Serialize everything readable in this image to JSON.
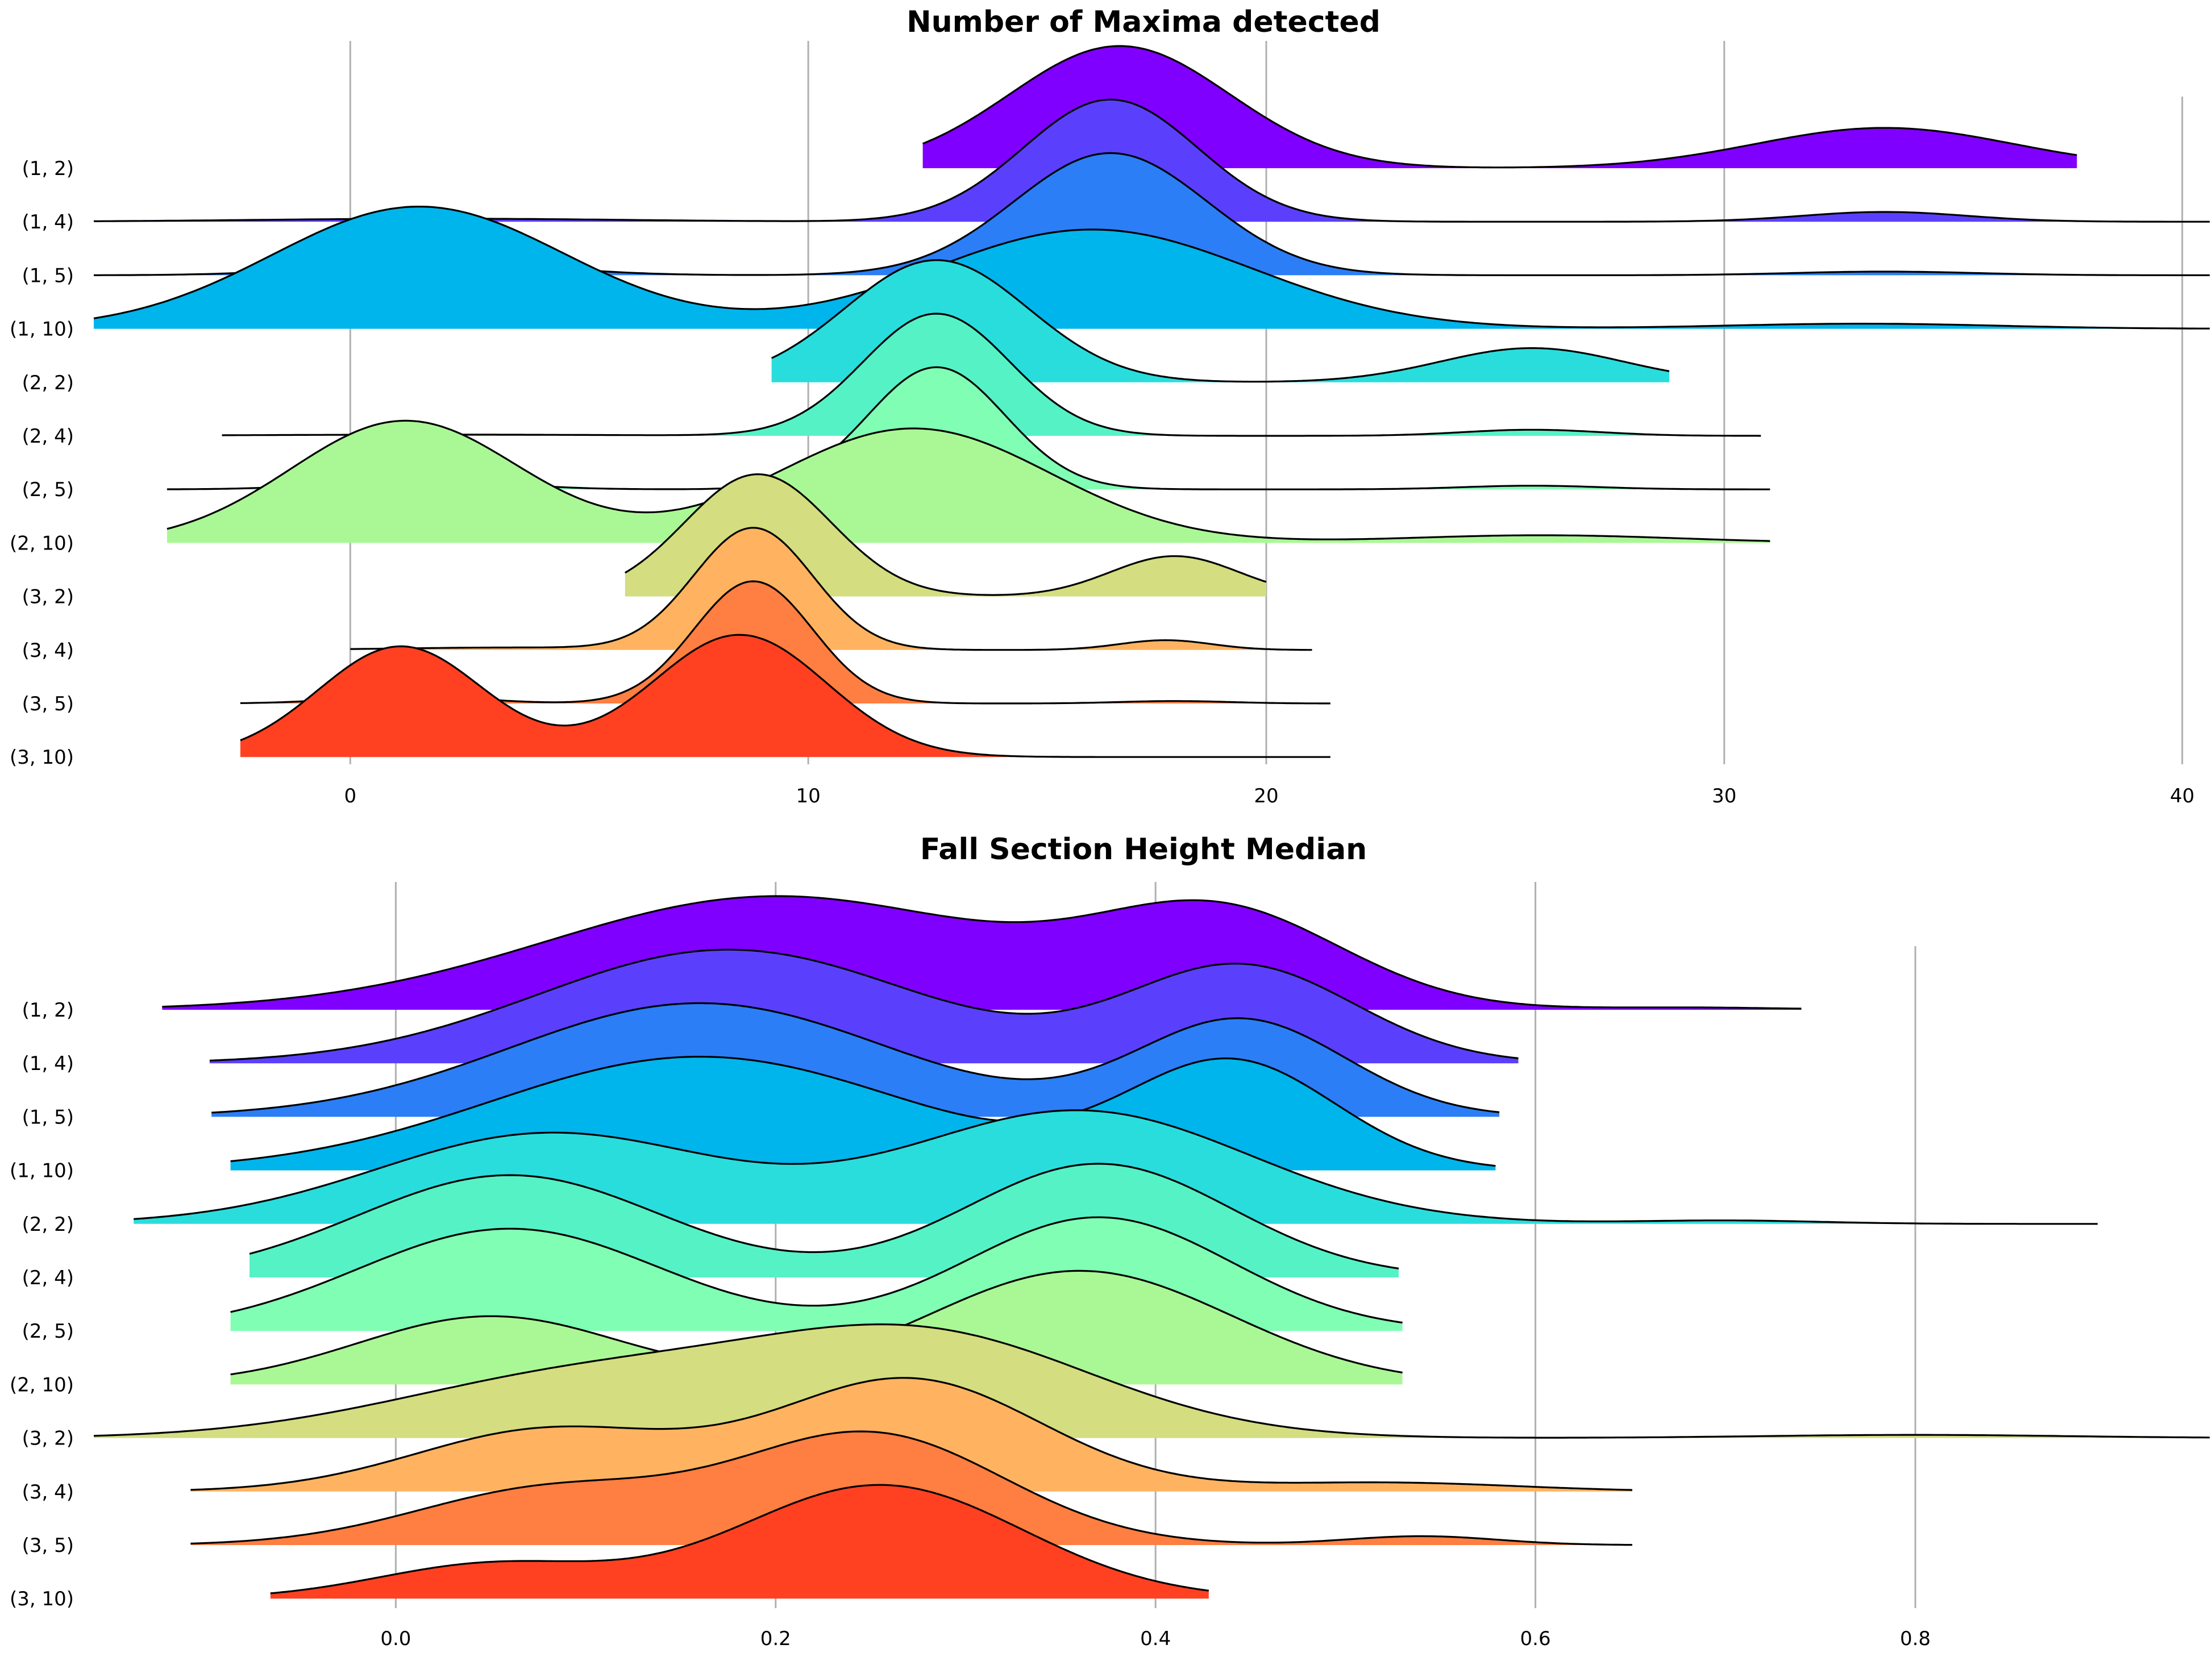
{
  "chart_data": [
    {
      "type": "ridgeline",
      "title": "Number of Maxima detected",
      "xlabel": "",
      "ylabel": "",
      "xlim": [
        -5.6,
        40.6
      ],
      "xticks": [
        0,
        10,
        20,
        30,
        40
      ],
      "xtick_labels": [
        "0",
        "10",
        "20",
        "30",
        "40"
      ],
      "grid": "vertical",
      "series": [
        {
          "name": "(1, 2)",
          "color": "#8000ff",
          "range": [
            12.5,
            37.7
          ],
          "components": [
            [
              16.8,
              2.4,
              1.0
            ],
            [
              33.5,
              2.8,
              0.33
            ]
          ]
        },
        {
          "name": "(1, 4)",
          "color": "#5a40fc",
          "range": [
            -5.6,
            40.6
          ],
          "components": [
            [
              16.6,
              1.9,
              1.0
            ],
            [
              33.5,
              1.8,
              0.08
            ],
            [
              2.0,
              4.0,
              0.025
            ]
          ]
        },
        {
          "name": "(1, 5)",
          "color": "#2b7ef6",
          "range": [
            -5.6,
            40.6
          ],
          "components": [
            [
              16.6,
              2.1,
              1.0
            ],
            [
              1.9,
              2.3,
              0.11
            ],
            [
              33.5,
              2.0,
              0.03
            ]
          ]
        },
        {
          "name": "(1, 10)",
          "color": "#00b5eb",
          "range": [
            -5.6,
            40.6
          ],
          "components": [
            [
              1.5,
              3.2,
              0.48
            ],
            [
              16.2,
              3.5,
              0.39
            ],
            [
              33.0,
              3.0,
              0.02
            ]
          ]
        },
        {
          "name": "(2, 2)",
          "color": "#2adddd",
          "range": [
            9.2,
            28.8
          ],
          "components": [
            [
              12.8,
              2.0,
              1.0
            ],
            [
              25.8,
              2.0,
              0.28
            ]
          ]
        },
        {
          "name": "(2, 4)",
          "color": "#55f2c6",
          "range": [
            -2.8,
            30.8
          ],
          "components": [
            [
              12.8,
              1.6,
              1.0
            ],
            [
              25.8,
              1.5,
              0.05
            ],
            [
              2.0,
              4.0,
              0.01
            ]
          ]
        },
        {
          "name": "(2, 5)",
          "color": "#80ffb4",
          "range": [
            -4.0,
            31.0
          ],
          "components": [
            [
              12.8,
              1.5,
              1.0
            ],
            [
              1.5,
              1.8,
              0.08
            ],
            [
              25.8,
              1.5,
              0.03
            ]
          ]
        },
        {
          "name": "(2, 10)",
          "color": "#aaf895",
          "range": [
            -4.0,
            31.0
          ],
          "components": [
            [
              1.2,
              2.5,
              0.48
            ],
            [
              12.3,
              3.0,
              0.45
            ],
            [
              26.0,
              3.0,
              0.03
            ]
          ]
        },
        {
          "name": "(3, 2)",
          "color": "#d4dd80",
          "range": [
            6.0,
            20.0
          ],
          "components": [
            [
              8.9,
              1.6,
              1.0
            ],
            [
              18.0,
              1.4,
              0.33
            ]
          ]
        },
        {
          "name": "(3, 4)",
          "color": "#ffb360",
          "range": [
            0.0,
            21.0
          ],
          "components": [
            [
              8.8,
              1.3,
              1.0
            ],
            [
              17.8,
              1.0,
              0.08
            ],
            [
              3.5,
              2.5,
              0.02
            ]
          ]
        },
        {
          "name": "(3, 5)",
          "color": "#ff7e41",
          "range": [
            -2.4,
            21.4
          ],
          "components": [
            [
              8.8,
              1.3,
              1.0
            ],
            [
              1.3,
              1.5,
              0.06
            ],
            [
              18.0,
              1.2,
              0.02
            ]
          ]
        },
        {
          "name": "(3, 10)",
          "color": "#ff4121",
          "range": [
            -2.4,
            21.4
          ],
          "components": [
            [
              1.1,
              1.8,
              0.48
            ],
            [
              8.5,
              1.9,
              0.53
            ]
          ]
        }
      ]
    },
    {
      "type": "ridgeline",
      "title": "Fall Section Height Median",
      "xlabel": "",
      "ylabel": "",
      "xlim": [
        -0.159,
        0.955
      ],
      "xticks": [
        0.0,
        0.2,
        0.4,
        0.6,
        0.8
      ],
      "xtick_labels": [
        "0.0",
        "0.2",
        "0.4",
        "0.6",
        "0.8"
      ],
      "grid": "vertical",
      "series": [
        {
          "name": "(1, 2)",
          "color": "#8000ff",
          "range": [
            -0.123,
            0.74
          ],
          "components": [
            [
              0.2,
              0.12,
              1.0
            ],
            [
              0.435,
              0.065,
              0.8
            ],
            [
              0.68,
              0.05,
              0.02
            ]
          ]
        },
        {
          "name": "(1, 4)",
          "color": "#5a40fc",
          "range": [
            -0.098,
            0.591
          ],
          "components": [
            [
              0.175,
              0.1,
              1.0
            ],
            [
              0.445,
              0.06,
              0.85
            ]
          ]
        },
        {
          "name": "(1, 5)",
          "color": "#2b7ef6",
          "range": [
            -0.097,
            0.581
          ],
          "components": [
            [
              0.16,
              0.1,
              1.0
            ],
            [
              0.445,
              0.055,
              0.85
            ]
          ]
        },
        {
          "name": "(1, 10)",
          "color": "#00b5eb",
          "range": [
            -0.087,
            0.579
          ],
          "components": [
            [
              0.16,
              0.11,
              0.9
            ],
            [
              0.44,
              0.055,
              0.85
            ]
          ]
        },
        {
          "name": "(2, 2)",
          "color": "#2adddd",
          "range": [
            -0.138,
            0.896
          ],
          "components": [
            [
              0.08,
              0.09,
              0.8
            ],
            [
              0.36,
              0.09,
              1.0
            ],
            [
              0.7,
              0.05,
              0.03
            ]
          ]
        },
        {
          "name": "(2, 4)",
          "color": "#55f2c6",
          "range": [
            -0.077,
            0.528
          ],
          "components": [
            [
              0.06,
              0.08,
              0.9
            ],
            [
              0.37,
              0.07,
              1.0
            ]
          ]
        },
        {
          "name": "(2, 5)",
          "color": "#80ffb4",
          "range": [
            -0.087,
            0.53
          ],
          "components": [
            [
              0.06,
              0.08,
              0.9
            ],
            [
              0.37,
              0.07,
              1.0
            ]
          ]
        },
        {
          "name": "(2, 10)",
          "color": "#aaf895",
          "range": [
            -0.087,
            0.53
          ],
          "components": [
            [
              0.05,
              0.07,
              0.6
            ],
            [
              0.36,
              0.08,
              1.0
            ]
          ]
        },
        {
          "name": "(3, 2)",
          "color": "#d4dd80",
          "range": [
            -0.159,
            0.955
          ],
          "components": [
            [
              0.1,
              0.1,
              0.6
            ],
            [
              0.28,
              0.09,
              0.95
            ],
            [
              0.8,
              0.08,
              0.03
            ]
          ]
        },
        {
          "name": "(3, 4)",
          "color": "#ffb360",
          "range": [
            -0.108,
            0.651
          ],
          "components": [
            [
              0.08,
              0.07,
              0.55
            ],
            [
              0.27,
              0.07,
              1.0
            ],
            [
              0.52,
              0.07,
              0.08
            ]
          ]
        },
        {
          "name": "(3, 5)",
          "color": "#ff7e41",
          "range": [
            -0.108,
            0.651
          ],
          "components": [
            [
              0.08,
              0.07,
              0.5
            ],
            [
              0.25,
              0.07,
              1.0
            ],
            [
              0.54,
              0.04,
              0.08
            ]
          ]
        },
        {
          "name": "(3, 10)",
          "color": "#ff4121",
          "range": [
            -0.066,
            0.428
          ],
          "components": [
            [
              0.05,
              0.06,
              0.3
            ],
            [
              0.255,
              0.075,
              1.0
            ]
          ]
        }
      ]
    }
  ]
}
